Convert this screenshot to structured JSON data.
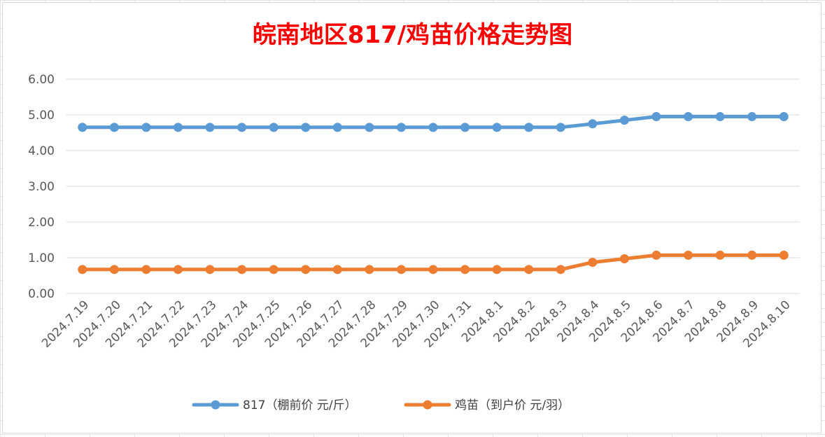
{
  "chart_data": {
    "type": "line",
    "title": "皖南地区817/鸡苗价格走势图",
    "x": [
      "2024.7.19",
      "2024.7.20",
      "2024.7.21",
      "2024.7.22",
      "2024.7.23",
      "2024.7.24",
      "2024.7.25",
      "2024.7.26",
      "2024.7.27",
      "2024.7.28",
      "2024.7.29",
      "2024.7.30",
      "2024.7.31",
      "2024.8.1",
      "2024.8.2",
      "2024.8.3",
      "2024.8.4",
      "2024.8.5",
      "2024.8.6",
      "2024.8.7",
      "2024.8.8",
      "2024.8.9",
      "2024.8.10"
    ],
    "ylim": [
      0,
      6
    ],
    "yticks": [
      "0.00",
      "1.00",
      "2.00",
      "3.00",
      "4.00",
      "5.00",
      "6.00"
    ],
    "grid": true,
    "legend_position": "bottom",
    "series": [
      {
        "name": "817（棚前价 元/斤）",
        "color": "#5b9bd5",
        "values": [
          4.65,
          4.65,
          4.65,
          4.65,
          4.65,
          4.65,
          4.65,
          4.65,
          4.65,
          4.65,
          4.65,
          4.65,
          4.65,
          4.65,
          4.65,
          4.65,
          4.75,
          4.85,
          4.95,
          4.95,
          4.95,
          4.95,
          4.95
        ]
      },
      {
        "name": "鸡苗（到户价 元/羽）",
        "color": "#ed7d31",
        "values": [
          0.67,
          0.67,
          0.67,
          0.67,
          0.67,
          0.67,
          0.67,
          0.67,
          0.67,
          0.67,
          0.67,
          0.67,
          0.67,
          0.67,
          0.67,
          0.67,
          0.87,
          0.97,
          1.07,
          1.07,
          1.07,
          1.07,
          1.07
        ]
      }
    ]
  }
}
